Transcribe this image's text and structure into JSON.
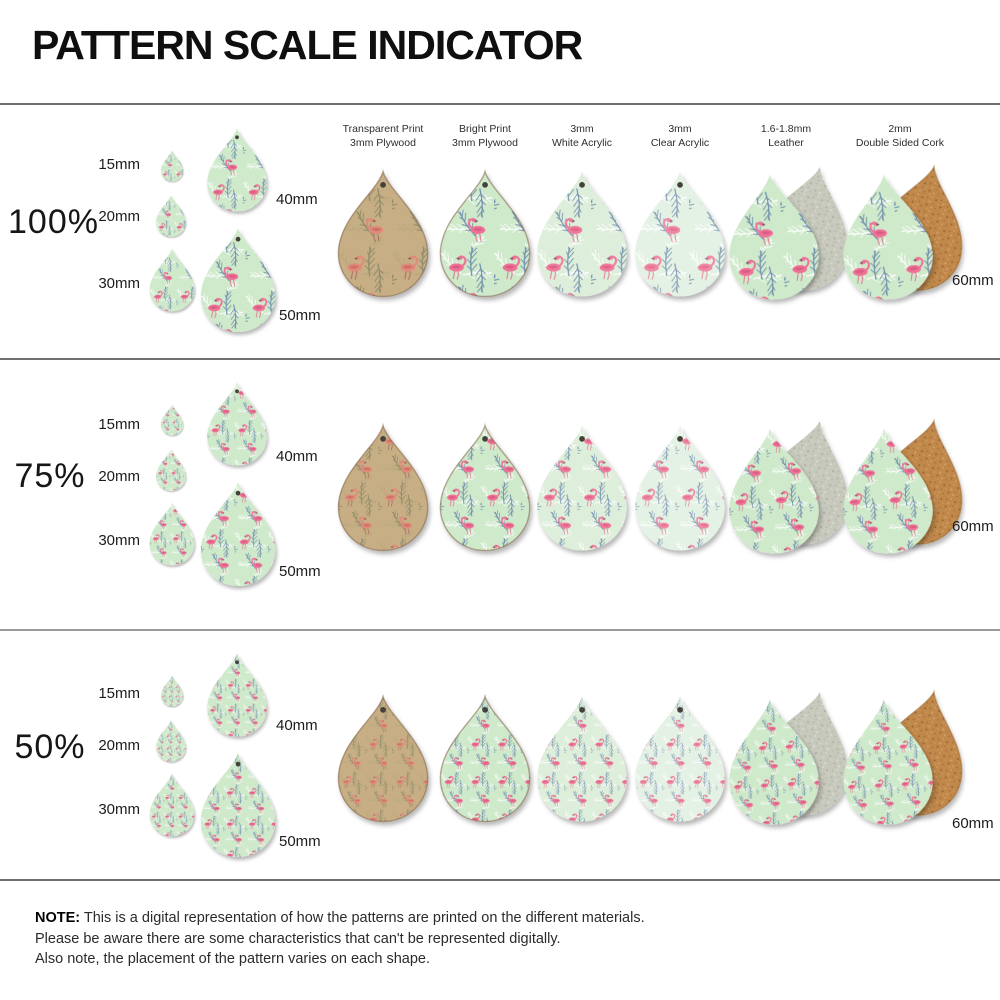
{
  "title": "PATTERN SCALE INDICATOR",
  "columns": [
    {
      "line1": "Transparent Print",
      "line2": "3mm Plywood"
    },
    {
      "line1": "Bright Print",
      "line2": "3mm Plywood"
    },
    {
      "line1": "3mm",
      "line2": "White Acrylic"
    },
    {
      "line1": "3mm",
      "line2": "Clear Acrylic"
    },
    {
      "line1": "1.6-1.8mm",
      "line2": "Leather"
    },
    {
      "line1": "2mm",
      "line2": "Double Sided Cork"
    }
  ],
  "rows": [
    {
      "label": "100%",
      "pattern_scale": 1
    },
    {
      "label": "75%",
      "pattern_scale": 0.75
    },
    {
      "label": "50%",
      "pattern_scale": 0.5
    }
  ],
  "size_labels": {
    "s15": "15mm",
    "s20": "20mm",
    "s30": "30mm",
    "s40": "40mm",
    "s50": "50mm",
    "s60": "60mm"
  },
  "note": {
    "label": "NOTE:",
    "line1": "This is a digital representation of how the patterns are printed on the different materials.",
    "line2": "Please be aware there are some characteristics that can't be represented digitally.",
    "line3": "Also note, the placement of the pattern varies on each shape."
  },
  "colors": {
    "divider": "#6f6f6f",
    "title_text": "#0f0f0f",
    "body_text": "#2b2b2b",
    "colorways": {
      "pw": {
        "name": "transparent-print-plywood",
        "bg": "#c7ae84",
        "f1": "#8d8a6a",
        "f2": "#b9a87e",
        "pink": "#e08a7c",
        "pinkd": "#cf7062",
        "leg": "#a8695c",
        "beak": "#6b5a4a"
      },
      "br": {
        "name": "bright-print-plywood",
        "bg": "#cfe9cb",
        "f1": "#6e8dac",
        "f2": "#ffffff",
        "pink": "#ee7296",
        "pinkd": "#dd5c84",
        "leg": "#e0708e",
        "beak": "#5a5a5a"
      },
      "wa": {
        "name": "white-acrylic",
        "bg": "#ddeeda",
        "f1": "#7b97b2",
        "f2": "#ffffff",
        "pink": "#ef7b9c",
        "pinkd": "#e1658a",
        "leg": "#e27b96",
        "beak": "#666666"
      },
      "ca": {
        "name": "clear-acrylic",
        "bg": "#e4f1e5",
        "f1": "#8aa2b8",
        "f2": "#ffffff",
        "pink": "#f08aa6",
        "pinkd": "#e57694",
        "leg": "#e88ba0",
        "beak": "#777777"
      }
    },
    "leather": {
      "bg": "#c8c9bd",
      "speckle1": "#b5b6a9",
      "speckle2": "#dedfd4",
      "speckle3": "#a9aa9d"
    },
    "cork": {
      "bg": "#c0884b",
      "speckle1": "#a86f36",
      "speckle2": "#d9a66b",
      "speckle3": "#8f5a28",
      "edge": "#96622c"
    },
    "plywood_edge": "#7a5c3c",
    "hole": "#44423a"
  }
}
